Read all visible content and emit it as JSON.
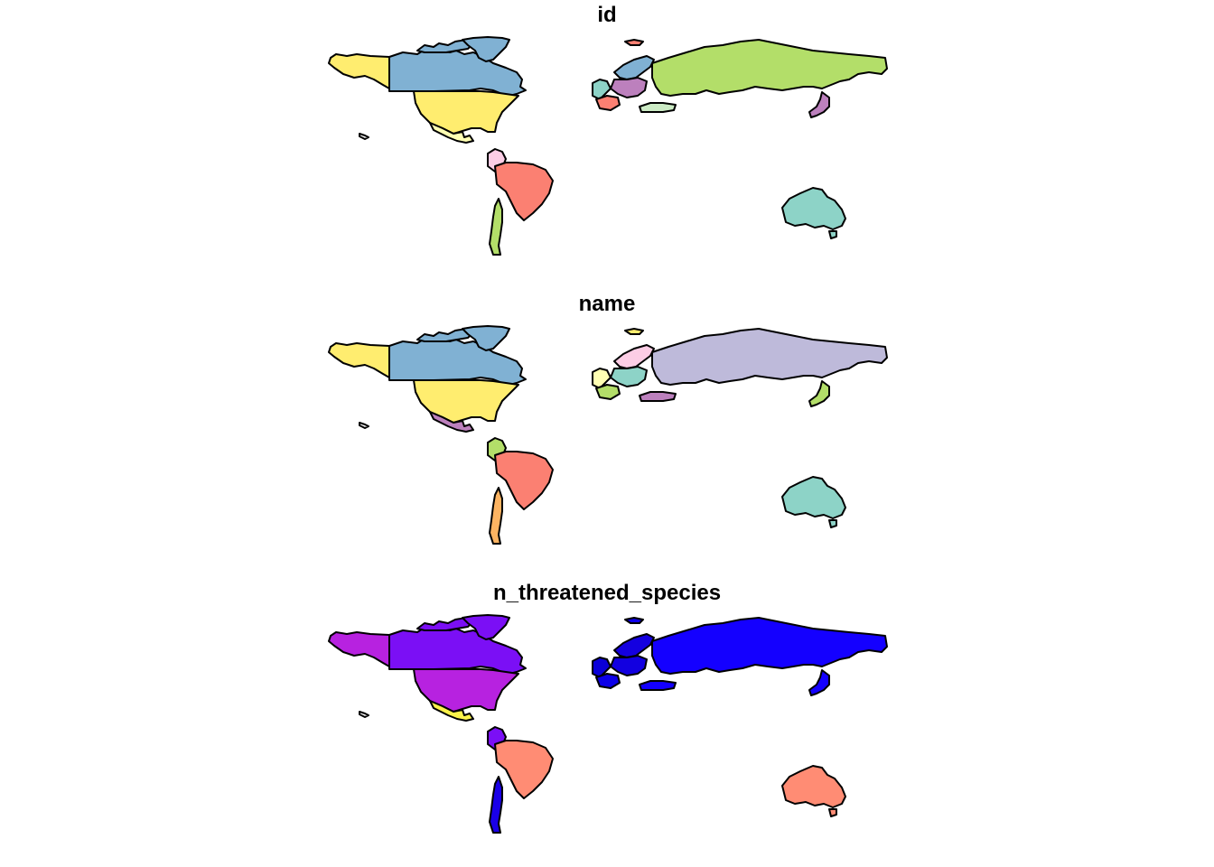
{
  "panels": [
    {
      "title": "id",
      "regions": [
        {
          "id": "alaska",
          "color": "#FFED6F"
        },
        {
          "id": "canada",
          "color": "#80B1D3"
        },
        {
          "id": "canada-islands",
          "color": "#80B1D3"
        },
        {
          "id": "greenland",
          "color": "#80B1D3"
        },
        {
          "id": "usa",
          "color": "#FFED6F"
        },
        {
          "id": "mexico",
          "color": "#FFFFB3"
        },
        {
          "id": "hawaii",
          "color": "#ffffff"
        },
        {
          "id": "colombia",
          "color": "#FCCDE5"
        },
        {
          "id": "brazil",
          "color": "#FB8072"
        },
        {
          "id": "chile",
          "color": "#B3DE69"
        },
        {
          "id": "iceland",
          "color": "#FB8072"
        },
        {
          "id": "scandinavia",
          "color": "#80B1D3"
        },
        {
          "id": "w-europe",
          "color": "#8DD3C7"
        },
        {
          "id": "c-europe",
          "color": "#BC80BD"
        },
        {
          "id": "iberia",
          "color": "#FB8072"
        },
        {
          "id": "turkey",
          "color": "#CCEBC5"
        },
        {
          "id": "russia",
          "color": "#B3DE69"
        },
        {
          "id": "japan",
          "color": "#BC80BD"
        },
        {
          "id": "australia",
          "color": "#8DD3C7"
        },
        {
          "id": "tasmania",
          "color": "#8DD3C7"
        }
      ]
    },
    {
      "title": "name",
      "regions": [
        {
          "id": "alaska",
          "color": "#FFED6F"
        },
        {
          "id": "canada",
          "color": "#80B1D3"
        },
        {
          "id": "canada-islands",
          "color": "#80B1D3"
        },
        {
          "id": "greenland",
          "color": "#80B1D3"
        },
        {
          "id": "usa",
          "color": "#FFED6F"
        },
        {
          "id": "mexico",
          "color": "#BC80BD"
        },
        {
          "id": "hawaii",
          "color": "#ffffff"
        },
        {
          "id": "colombia",
          "color": "#B3DE69"
        },
        {
          "id": "brazil",
          "color": "#FB8072"
        },
        {
          "id": "chile",
          "color": "#FDB462"
        },
        {
          "id": "iceland",
          "color": "#FFED6F"
        },
        {
          "id": "scandinavia",
          "color": "#FCCDE5"
        },
        {
          "id": "w-europe",
          "color": "#FFFFB3"
        },
        {
          "id": "c-europe",
          "color": "#8DD3C7"
        },
        {
          "id": "iberia",
          "color": "#B3DE69"
        },
        {
          "id": "turkey",
          "color": "#BC80BD"
        },
        {
          "id": "russia",
          "color": "#BEBADA"
        },
        {
          "id": "japan",
          "color": "#B3DE69"
        },
        {
          "id": "australia",
          "color": "#8DD3C7"
        },
        {
          "id": "tasmania",
          "color": "#8DD3C7"
        }
      ]
    },
    {
      "title": "n_threatened_species",
      "regions": [
        {
          "id": "alaska",
          "color": "#B722E0"
        },
        {
          "id": "canada",
          "color": "#7B0FF5"
        },
        {
          "id": "canada-islands",
          "color": "#7B0FF5"
        },
        {
          "id": "greenland",
          "color": "#7B0FF5"
        },
        {
          "id": "usa",
          "color": "#B722E0"
        },
        {
          "id": "mexico",
          "color": "#FAF24A"
        },
        {
          "id": "hawaii",
          "color": "#ffffff"
        },
        {
          "id": "colombia",
          "color": "#7B0FF5"
        },
        {
          "id": "brazil",
          "color": "#FF8C74"
        },
        {
          "id": "chile",
          "color": "#1A00E8"
        },
        {
          "id": "iceland",
          "color": "#0D00E8"
        },
        {
          "id": "scandinavia",
          "color": "#1400E0"
        },
        {
          "id": "w-europe",
          "color": "#0A00D8"
        },
        {
          "id": "c-europe",
          "color": "#1200E0"
        },
        {
          "id": "iberia",
          "color": "#0D00E8"
        },
        {
          "id": "turkey",
          "color": "#1400FF"
        },
        {
          "id": "russia",
          "color": "#1400FF"
        },
        {
          "id": "japan",
          "color": "#1400FF"
        },
        {
          "id": "australia",
          "color": "#FF8C74"
        },
        {
          "id": "tasmania",
          "color": "#FF8C74"
        }
      ]
    }
  ]
}
